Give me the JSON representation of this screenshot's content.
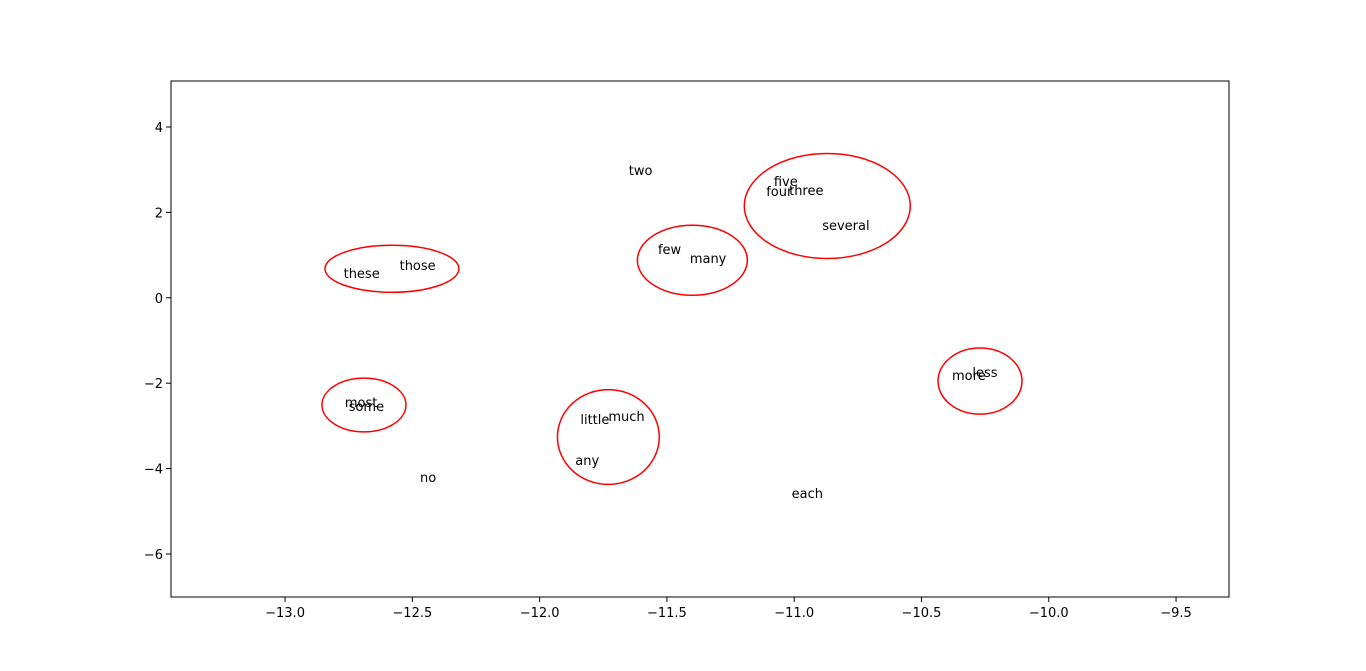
{
  "chart_data": {
    "type": "scatter",
    "labels": [
      "two",
      "five",
      "four",
      "three",
      "several",
      "few",
      "many",
      "these",
      "those",
      "more",
      "less",
      "most",
      "some",
      "little",
      "much",
      "any",
      "no",
      "each"
    ],
    "x": [
      -11.65,
      -11.08,
      -11.11,
      -11.02,
      -10.89,
      -11.535,
      -11.41,
      -12.77,
      -12.55,
      -10.38,
      -10.3,
      -12.765,
      -12.75,
      -11.84,
      -11.73,
      -11.86,
      -12.47,
      -11.01
    ],
    "values": [
      2.88,
      2.62,
      2.38,
      2.41,
      1.59,
      1.03,
      0.81,
      0.46,
      0.65,
      -1.93,
      -1.85,
      -2.56,
      -2.65,
      -2.95,
      -2.88,
      -3.92,
      -4.31,
      -4.69
    ],
    "ellipses": [
      {
        "x": -12.58,
        "y": 0.68,
        "width": 0.526,
        "height": 1.1
      },
      {
        "x": -11.4,
        "y": 0.88,
        "width": 0.432,
        "height": 1.64
      },
      {
        "x": -10.87,
        "y": 2.15,
        "width": 0.652,
        "height": 2.46
      },
      {
        "x": -10.27,
        "y": -1.95,
        "width": 0.33,
        "height": 1.55
      },
      {
        "x": -12.69,
        "y": -2.51,
        "width": 0.33,
        "height": 1.26
      },
      {
        "x": -11.73,
        "y": -3.26,
        "width": 0.4,
        "height": 2.22
      }
    ],
    "ellipse_color": "red",
    "xlim": [
      -13.448,
      -9.292
    ],
    "ylim": [
      -7.007,
      5.077
    ],
    "xticks": [
      {
        "value": -13,
        "label": "−13.0"
      },
      {
        "value": -12.5,
        "label": "−12.5"
      },
      {
        "value": -12,
        "label": "−12.0"
      },
      {
        "value": -11.5,
        "label": "−11.5"
      },
      {
        "value": -11,
        "label": "−11.0"
      },
      {
        "value": -10.5,
        "label": "−10.5"
      },
      {
        "value": -10,
        "label": "−10.0"
      },
      {
        "value": -9.5,
        "label": "−9.5"
      }
    ],
    "yticks": [
      {
        "value": -6,
        "label": "−6"
      },
      {
        "value": -4,
        "label": "−4"
      },
      {
        "value": -2,
        "label": "−2"
      },
      0,
      2,
      4
    ]
  }
}
